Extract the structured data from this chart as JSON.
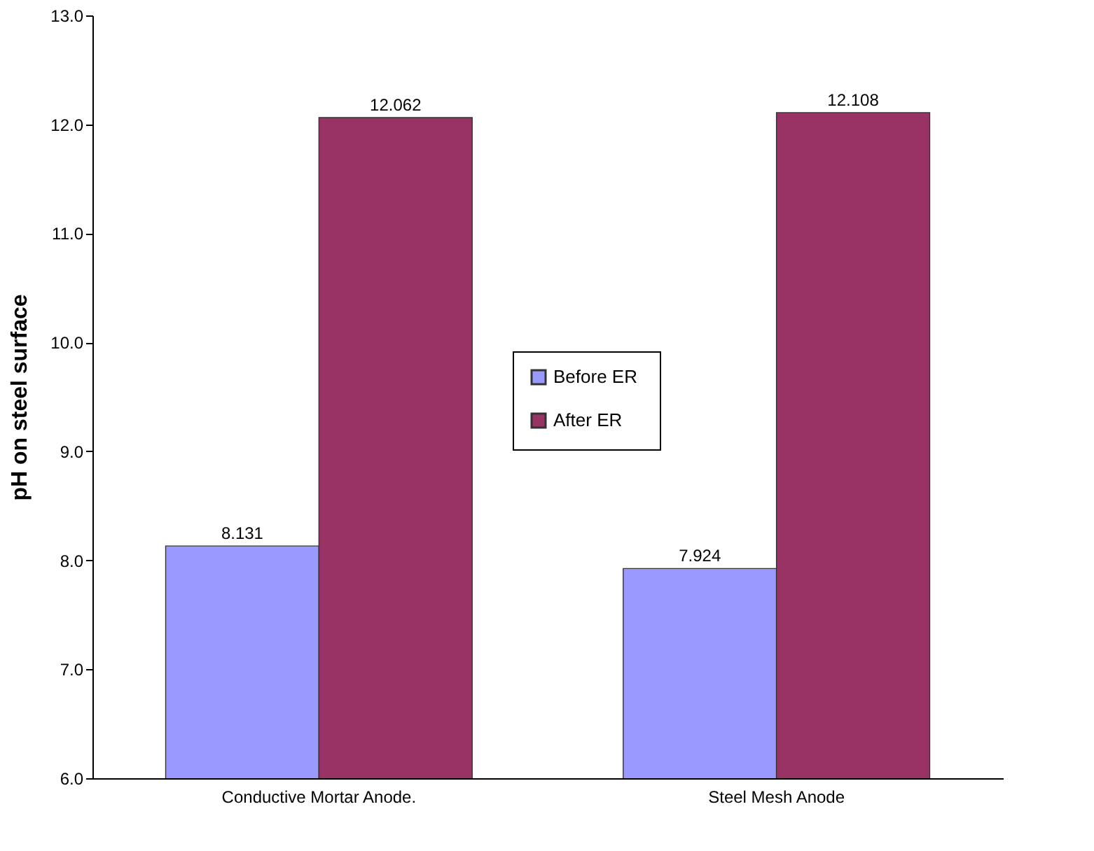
{
  "chart_data": {
    "type": "bar",
    "ylabel": "pH on steel surface",
    "categories": [
      "Conductive Mortar Anode.",
      "Steel Mesh Anode"
    ],
    "series": [
      {
        "name": "Before  ER",
        "color": "#9999ff",
        "values": [
          8.131,
          7.924
        ]
      },
      {
        "name": "After ER",
        "color": "#993366",
        "values": [
          12.062,
          12.108
        ]
      }
    ],
    "ylim": [
      6,
      13
    ],
    "yticks": [
      {
        "value": 6,
        "label": "6.0"
      },
      {
        "value": 7,
        "label": "7.0"
      },
      {
        "value": 8,
        "label": "8.0"
      },
      {
        "value": 9,
        "label": "9.0"
      },
      {
        "value": 10,
        "label": "10.0"
      },
      {
        "value": 11,
        "label": "11.0"
      },
      {
        "value": 12,
        "label": "12.0"
      },
      {
        "value": 13,
        "label": "13.0"
      }
    ],
    "data_labels": true,
    "legend": "center",
    "grid": false
  }
}
